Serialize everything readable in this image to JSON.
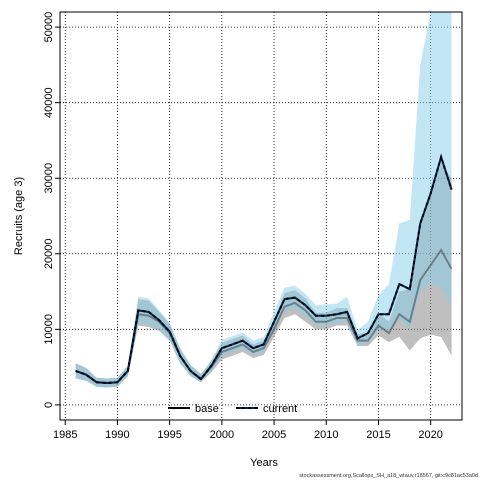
{
  "chart_data": {
    "type": "line",
    "xlabel": "Years",
    "ylabel": "Recruits (age 3)",
    "xlim": [
      1984.5,
      2023
    ],
    "ylim": [
      -2000,
      52000
    ],
    "x_ticks": [
      1985,
      1990,
      1995,
      2000,
      2005,
      2010,
      2015,
      2020
    ],
    "y_ticks": [
      0,
      10000,
      20000,
      30000,
      40000,
      50000
    ],
    "grid": true,
    "legend_position": "bottom-center",
    "footnote": "stockassessment.org,Scallops_SH_a18_wtauv,r18567, git:c9c81ac53a0d",
    "colors": {
      "base_line": "#000000",
      "base_band": "#808080",
      "current_line": "#00264d",
      "current_dash": "#000000",
      "current_band": "#87ceeb"
    },
    "x": [
      1986,
      1987,
      1988,
      1989,
      1990,
      1991,
      1992,
      1993,
      1994,
      1995,
      1996,
      1997,
      1998,
      1999,
      2000,
      2001,
      2002,
      2003,
      2004,
      2005,
      2006,
      2007,
      2008,
      2009,
      2010,
      2011,
      2012,
      2013,
      2014,
      2015,
      2016,
      2017,
      2018,
      2019,
      2020,
      2021,
      2022
    ],
    "series": [
      {
        "name": "base",
        "style": "solid",
        "values": [
          4500,
          4000,
          3000,
          2900,
          3000,
          4500,
          12000,
          11800,
          11000,
          9500,
          6500,
          4500,
          3500,
          5000,
          7000,
          7500,
          8000,
          7000,
          7500,
          10000,
          13000,
          13500,
          12500,
          11000,
          11000,
          11500,
          11500,
          8500,
          8500,
          10500,
          9500,
          12000,
          11000,
          16500,
          18500,
          20500,
          18000
        ],
        "lower": [
          3500,
          3200,
          2400,
          2300,
          2400,
          3800,
          10500,
          10300,
          9800,
          8500,
          5500,
          3800,
          3000,
          4300,
          6000,
          6500,
          7000,
          6200,
          6600,
          9000,
          11500,
          12000,
          11000,
          10000,
          10000,
          10500,
          10500,
          7800,
          7800,
          9200,
          8300,
          9000,
          7200,
          8800,
          9300,
          9000,
          6500
        ],
        "upper": [
          5500,
          4900,
          3600,
          3500,
          3600,
          5200,
          14000,
          13800,
          12300,
          10700,
          7500,
          5300,
          4100,
          5800,
          8200,
          8700,
          9200,
          8000,
          8500,
          11200,
          14800,
          15200,
          14100,
          12200,
          12200,
          12800,
          12800,
          9400,
          9500,
          12200,
          11000,
          15000,
          15300,
          24500,
          28000,
          32000,
          30000
        ]
      },
      {
        "name": "current",
        "style": "dashed",
        "values": [
          4500,
          4000,
          3000,
          2900,
          3000,
          4500,
          12500,
          12300,
          11200,
          9700,
          6500,
          4500,
          3400,
          5200,
          7500,
          8000,
          8500,
          7500,
          8000,
          11000,
          14000,
          14200,
          13200,
          11800,
          11800,
          12000,
          12300,
          8800,
          9500,
          12000,
          12000,
          16000,
          15300,
          24000,
          28000,
          32800,
          28500
        ],
        "lower": [
          3600,
          3200,
          2400,
          2300,
          2400,
          3800,
          10800,
          10600,
          10000,
          8600,
          5500,
          3800,
          3000,
          4500,
          6500,
          7000,
          7500,
          6600,
          7000,
          9800,
          12500,
          12700,
          11800,
          10500,
          10500,
          10800,
          11000,
          7800,
          8200,
          10000,
          9600,
          11500,
          10000,
          15000,
          16000,
          15500,
          13000
        ],
        "upper": [
          5500,
          4900,
          3600,
          3500,
          3600,
          5200,
          14300,
          14100,
          12500,
          10900,
          7500,
          5300,
          4000,
          6000,
          8600,
          9100,
          9600,
          8500,
          9000,
          12300,
          15500,
          15800,
          14700,
          13200,
          13300,
          13400,
          14300,
          9900,
          11000,
          14500,
          16000,
          24000,
          24500,
          45000,
          52000,
          52000,
          52000
        ]
      }
    ],
    "legend": [
      {
        "label": "base",
        "style": "solid"
      },
      {
        "label": "current",
        "style": "dashed"
      }
    ]
  }
}
